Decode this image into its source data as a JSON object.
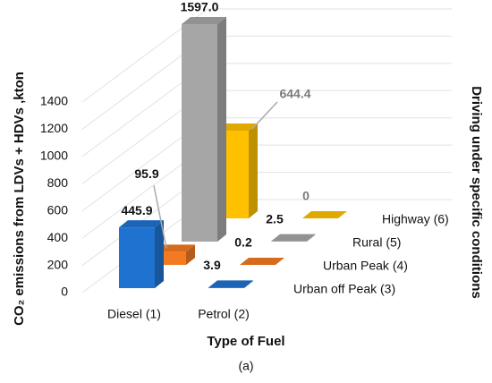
{
  "chart_data": {
    "type": "bar3d",
    "x_label": "Type of Fuel",
    "y_label": "CO₂ emissions from LDVs + HDVs ,kton",
    "z_label": "Driving under specific conditions",
    "caption": "(a)",
    "categories": [
      "Diesel (1)",
      "Petrol (2)"
    ],
    "series": [
      {
        "name": "Urban off Peak (3)",
        "color": "#1f72cf",
        "values": [
          445.9,
          3.9
        ]
      },
      {
        "name": "Urban Peak (4)",
        "color": "#f37a21",
        "values": [
          95.9,
          0.2
        ]
      },
      {
        "name": "Rural (5)",
        "color": "#a6a6a6",
        "values": [
          1597.0,
          2.5
        ],
        "value_labels": [
          "1597.0",
          "2.5"
        ]
      },
      {
        "name": "Highway (6)",
        "color": "#ffc000",
        "values": [
          644.4,
          0
        ],
        "label_color": "#7a7a7a"
      }
    ],
    "ylim": [
      0,
      1400
    ],
    "yticks": [
      0,
      200,
      400,
      600,
      800,
      1000,
      1200,
      1400
    ],
    "grid": true
  }
}
